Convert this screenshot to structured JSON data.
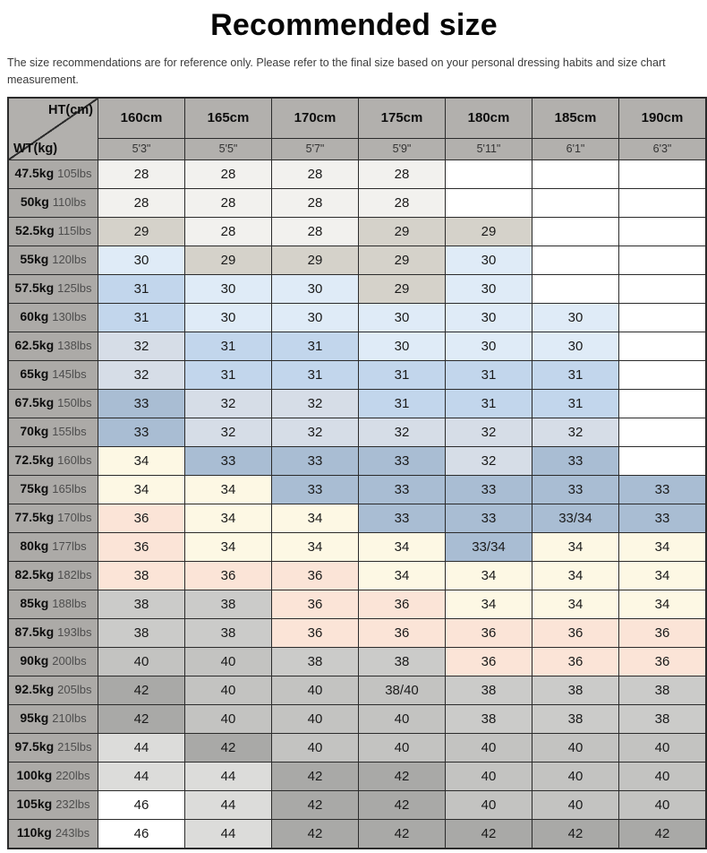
{
  "title": "Recommended size",
  "disclaimer": "The size recommendations are for reference only. Please refer to the final size based on your personal dressing habits and size chart measurement.",
  "table": {
    "corner": {
      "top": "HT(cm)",
      "bottom": "WT(kg)"
    },
    "header_bg": "#b2b0ad",
    "rowhead_bg": "#acaaa7",
    "grid_color": "#2b2b2b",
    "palette": {
      "a": "#f2f1ee",
      "b": "#d5d2ca",
      "c": "#dfebf7",
      "d": "#c2d6ec",
      "e": "#d6dde7",
      "f": "#a9bdd3",
      "g": "#fdf8e4",
      "h": "#fbe4d7",
      "i": "#cbcbc9",
      "j": "#c3c3c1",
      "k": "#a9a9a7",
      "l": "#dcdcda",
      "w": "#ffffff"
    }
  },
  "chart_data": {
    "type": "table",
    "title": "Recommended size",
    "columns_cm": [
      "160cm",
      "165cm",
      "170cm",
      "175cm",
      "180cm",
      "185cm",
      "190cm"
    ],
    "columns_ft": [
      "5'3\"",
      "5'5\"",
      "5'7\"",
      "5'9\"",
      "5'11\"",
      "6'1\"",
      "6'3\""
    ],
    "rows": [
      {
        "kg": "47.5kg",
        "lbs": "105lbs",
        "cells": [
          [
            "28",
            "a"
          ],
          [
            "28",
            "a"
          ],
          [
            "28",
            "a"
          ],
          [
            "28",
            "a"
          ],
          [
            "",
            "w"
          ],
          [
            "",
            "w"
          ],
          [
            "",
            "w"
          ]
        ]
      },
      {
        "kg": "50kg",
        "lbs": "110lbs",
        "cells": [
          [
            "28",
            "a"
          ],
          [
            "28",
            "a"
          ],
          [
            "28",
            "a"
          ],
          [
            "28",
            "a"
          ],
          [
            "",
            "w"
          ],
          [
            "",
            "w"
          ],
          [
            "",
            "w"
          ]
        ]
      },
      {
        "kg": "52.5kg",
        "lbs": "115lbs",
        "cells": [
          [
            "29",
            "b"
          ],
          [
            "28",
            "a"
          ],
          [
            "28",
            "a"
          ],
          [
            "29",
            "b"
          ],
          [
            "29",
            "b"
          ],
          [
            "",
            "w"
          ],
          [
            "",
            "w"
          ]
        ]
      },
      {
        "kg": "55kg",
        "lbs": "120lbs",
        "cells": [
          [
            "30",
            "c"
          ],
          [
            "29",
            "b"
          ],
          [
            "29",
            "b"
          ],
          [
            "29",
            "b"
          ],
          [
            "30",
            "c"
          ],
          [
            "",
            "w"
          ],
          [
            "",
            "w"
          ]
        ]
      },
      {
        "kg": "57.5kg",
        "lbs": "125lbs",
        "cells": [
          [
            "31",
            "d"
          ],
          [
            "30",
            "c"
          ],
          [
            "30",
            "c"
          ],
          [
            "29",
            "b"
          ],
          [
            "30",
            "c"
          ],
          [
            "",
            "w"
          ],
          [
            "",
            "w"
          ]
        ]
      },
      {
        "kg": "60kg",
        "lbs": "130lbs",
        "cells": [
          [
            "31",
            "d"
          ],
          [
            "30",
            "c"
          ],
          [
            "30",
            "c"
          ],
          [
            "30",
            "c"
          ],
          [
            "30",
            "c"
          ],
          [
            "30",
            "c"
          ],
          [
            "",
            "w"
          ]
        ]
      },
      {
        "kg": "62.5kg",
        "lbs": "138lbs",
        "cells": [
          [
            "32",
            "e"
          ],
          [
            "31",
            "d"
          ],
          [
            "31",
            "d"
          ],
          [
            "30",
            "c"
          ],
          [
            "30",
            "c"
          ],
          [
            "30",
            "c"
          ],
          [
            "",
            "w"
          ]
        ]
      },
      {
        "kg": "65kg",
        "lbs": "145lbs",
        "cells": [
          [
            "32",
            "e"
          ],
          [
            "31",
            "d"
          ],
          [
            "31",
            "d"
          ],
          [
            "31",
            "d"
          ],
          [
            "31",
            "d"
          ],
          [
            "31",
            "d"
          ],
          [
            "",
            "w"
          ]
        ]
      },
      {
        "kg": "67.5kg",
        "lbs": "150lbs",
        "cells": [
          [
            "33",
            "f"
          ],
          [
            "32",
            "e"
          ],
          [
            "32",
            "e"
          ],
          [
            "31",
            "d"
          ],
          [
            "31",
            "d"
          ],
          [
            "31",
            "d"
          ],
          [
            "",
            "w"
          ]
        ]
      },
      {
        "kg": "70kg",
        "lbs": "155lbs",
        "cells": [
          [
            "33",
            "f"
          ],
          [
            "32",
            "e"
          ],
          [
            "32",
            "e"
          ],
          [
            "32",
            "e"
          ],
          [
            "32",
            "e"
          ],
          [
            "32",
            "e"
          ],
          [
            "",
            "w"
          ]
        ]
      },
      {
        "kg": "72.5kg",
        "lbs": "160lbs",
        "cells": [
          [
            "34",
            "g"
          ],
          [
            "33",
            "f"
          ],
          [
            "33",
            "f"
          ],
          [
            "33",
            "f"
          ],
          [
            "32",
            "e"
          ],
          [
            "33",
            "f"
          ],
          [
            "",
            "w"
          ]
        ]
      },
      {
        "kg": "75kg",
        "lbs": "165lbs",
        "cells": [
          [
            "34",
            "g"
          ],
          [
            "34",
            "g"
          ],
          [
            "33",
            "f"
          ],
          [
            "33",
            "f"
          ],
          [
            "33",
            "f"
          ],
          [
            "33",
            "f"
          ],
          [
            "33",
            "f"
          ]
        ]
      },
      {
        "kg": "77.5kg",
        "lbs": "170lbs",
        "cells": [
          [
            "36",
            "h"
          ],
          [
            "34",
            "g"
          ],
          [
            "34",
            "g"
          ],
          [
            "33",
            "f"
          ],
          [
            "33",
            "f"
          ],
          [
            "33/34",
            "f"
          ],
          [
            "33",
            "f"
          ]
        ]
      },
      {
        "kg": "80kg",
        "lbs": "177lbs",
        "cells": [
          [
            "36",
            "h"
          ],
          [
            "34",
            "g"
          ],
          [
            "34",
            "g"
          ],
          [
            "34",
            "g"
          ],
          [
            "33/34",
            "f"
          ],
          [
            "34",
            "g"
          ],
          [
            "34",
            "g"
          ]
        ]
      },
      {
        "kg": "82.5kg",
        "lbs": "182lbs",
        "cells": [
          [
            "38",
            "h"
          ],
          [
            "36",
            "h"
          ],
          [
            "36",
            "h"
          ],
          [
            "34",
            "g"
          ],
          [
            "34",
            "g"
          ],
          [
            "34",
            "g"
          ],
          [
            "34",
            "g"
          ]
        ]
      },
      {
        "kg": "85kg",
        "lbs": "188lbs",
        "cells": [
          [
            "38",
            "i"
          ],
          [
            "38",
            "i"
          ],
          [
            "36",
            "h"
          ],
          [
            "36",
            "h"
          ],
          [
            "34",
            "g"
          ],
          [
            "34",
            "g"
          ],
          [
            "34",
            "g"
          ]
        ]
      },
      {
        "kg": "87.5kg",
        "lbs": "193lbs",
        "cells": [
          [
            "38",
            "i"
          ],
          [
            "38",
            "i"
          ],
          [
            "36",
            "h"
          ],
          [
            "36",
            "h"
          ],
          [
            "36",
            "h"
          ],
          [
            "36",
            "h"
          ],
          [
            "36",
            "h"
          ]
        ]
      },
      {
        "kg": "90kg",
        "lbs": "200lbs",
        "cells": [
          [
            "40",
            "j"
          ],
          [
            "40",
            "j"
          ],
          [
            "38",
            "i"
          ],
          [
            "38",
            "i"
          ],
          [
            "36",
            "h"
          ],
          [
            "36",
            "h"
          ],
          [
            "36",
            "h"
          ]
        ]
      },
      {
        "kg": "92.5kg",
        "lbs": "205lbs",
        "cells": [
          [
            "42",
            "k"
          ],
          [
            "40",
            "j"
          ],
          [
            "40",
            "j"
          ],
          [
            "38/40",
            "j"
          ],
          [
            "38",
            "i"
          ],
          [
            "38",
            "i"
          ],
          [
            "38",
            "i"
          ]
        ]
      },
      {
        "kg": "95kg",
        "lbs": "210lbs",
        "cells": [
          [
            "42",
            "k"
          ],
          [
            "40",
            "j"
          ],
          [
            "40",
            "j"
          ],
          [
            "40",
            "j"
          ],
          [
            "38",
            "i"
          ],
          [
            "38",
            "i"
          ],
          [
            "38",
            "i"
          ]
        ]
      },
      {
        "kg": "97.5kg",
        "lbs": "215lbs",
        "cells": [
          [
            "44",
            "l"
          ],
          [
            "42",
            "k"
          ],
          [
            "40",
            "j"
          ],
          [
            "40",
            "j"
          ],
          [
            "40",
            "j"
          ],
          [
            "40",
            "j"
          ],
          [
            "40",
            "j"
          ]
        ]
      },
      {
        "kg": "100kg",
        "lbs": "220lbs",
        "cells": [
          [
            "44",
            "l"
          ],
          [
            "44",
            "l"
          ],
          [
            "42",
            "k"
          ],
          [
            "42",
            "k"
          ],
          [
            "40",
            "j"
          ],
          [
            "40",
            "j"
          ],
          [
            "40",
            "j"
          ]
        ]
      },
      {
        "kg": "105kg",
        "lbs": "232lbs",
        "cells": [
          [
            "46",
            "w"
          ],
          [
            "44",
            "l"
          ],
          [
            "42",
            "k"
          ],
          [
            "42",
            "k"
          ],
          [
            "40",
            "j"
          ],
          [
            "40",
            "j"
          ],
          [
            "40",
            "j"
          ]
        ]
      },
      {
        "kg": "110kg",
        "lbs": "243lbs",
        "cells": [
          [
            "46",
            "w"
          ],
          [
            "44",
            "l"
          ],
          [
            "42",
            "k"
          ],
          [
            "42",
            "k"
          ],
          [
            "42",
            "k"
          ],
          [
            "42",
            "k"
          ],
          [
            "42",
            "k"
          ]
        ]
      }
    ]
  }
}
